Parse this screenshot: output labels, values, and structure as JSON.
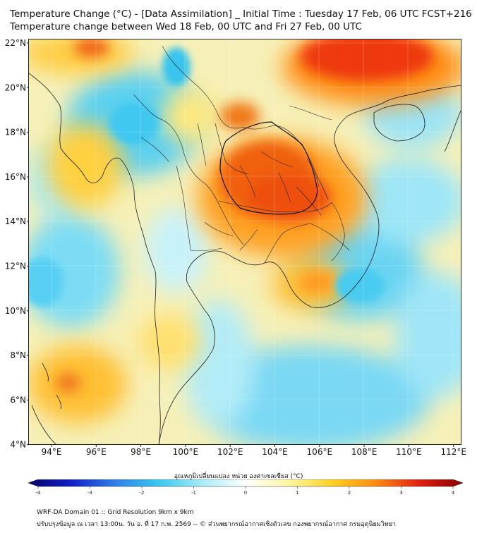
{
  "title_line1": "Temperature Change (°C) - [Data Assimilation] _ Initial Time : Tuesday 17 Feb, 06 UTC FCST+216",
  "title_line2": "Temperature change between Wed 18 Feb, 00 UTC and Fri 27 Feb, 00 UTC",
  "y_ticks": [
    "22°N",
    "20°N",
    "18°N",
    "16°N",
    "14°N",
    "12°N",
    "10°N",
    "8°N",
    "6°N",
    "4°N"
  ],
  "x_ticks": [
    "94°E",
    "96°E",
    "98°E",
    "100°E",
    "102°E",
    "104°E",
    "106°E",
    "108°E",
    "110°E",
    "112°E"
  ],
  "colorbar": {
    "label": "อุณหภูมิเปลี่ยนแปลง หน่วย องศาเซลเซียส (°C)",
    "ticks": [
      "-4",
      "-3",
      "-2",
      "-1",
      "0",
      "1",
      "2",
      "3",
      "4"
    ],
    "range": [
      -4,
      4
    ],
    "colors": [
      "#08006b",
      "#1020c8",
      "#2f7fe8",
      "#38c8f0",
      "#a8ecf8",
      "#ffffff",
      "#fff6a0",
      "#ffd020",
      "#ff8a10",
      "#e02010",
      "#8a0000"
    ]
  },
  "footer_line1": "WRF-DA Domain 01 :: Grid Resolution 9km x 9km",
  "footer_line2": "ปรับปรุงข้อมูล ณ เวลา 13:00น. วัน อ. ที่ 17 ก.พ. 2569 -- © ส่วนพยากรณ์อากาศเชิงตัวเลข กองพยากรณ์อากาศ กรมอุตุนิยมวิทยา"
}
